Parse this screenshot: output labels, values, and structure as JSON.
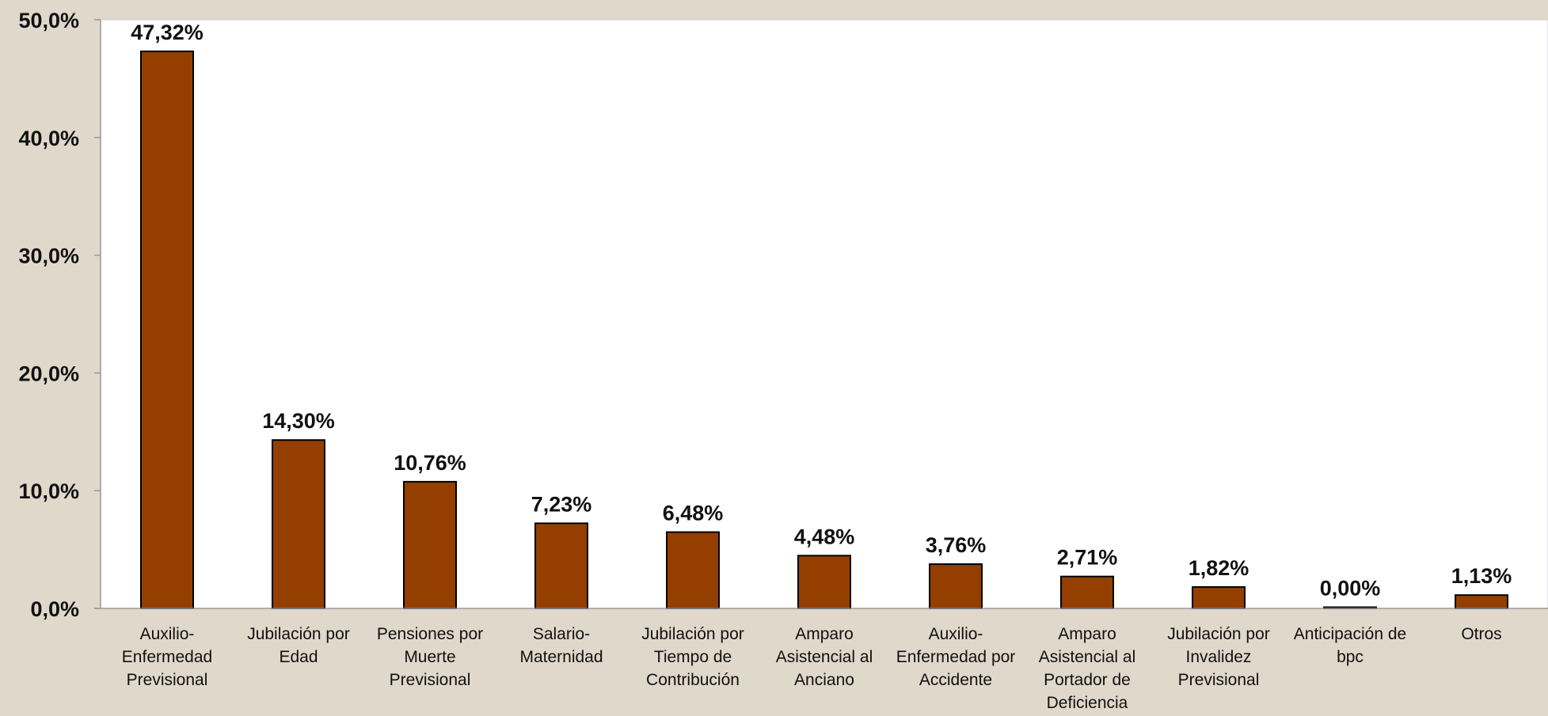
{
  "chart_data": {
    "type": "bar",
    "categories": [
      "Auxilio-Enfermedad Previsional",
      "Jubilación por Edad",
      "Pensiones por Muerte Previsional",
      "Salario-Maternidad",
      "Jubilación por Tiempo de Contribución",
      "Amparo Asistencial al Anciano",
      "Auxilio-Enfermedad por Accidente",
      "Amparo Asistencial al Portador de Deficiencia",
      "Jubilación por Invalidez Previsional",
      "Anticipación de bpc",
      "Otros"
    ],
    "category_lines": [
      [
        "Auxilio-",
        "Enfermedad",
        "Previsional"
      ],
      [
        "Jubilación por",
        "Edad"
      ],
      [
        "Pensiones por",
        "Muerte",
        "Previsional"
      ],
      [
        "Salario-",
        "Maternidad"
      ],
      [
        "Jubilación por",
        "Tiempo de",
        "Contribución"
      ],
      [
        "Amparo",
        "Asistencial al",
        "Anciano"
      ],
      [
        "Auxilio-",
        "Enfermedad por",
        "Accidente"
      ],
      [
        "Amparo",
        "Asistencial al",
        "Portador de",
        "Deficiencia"
      ],
      [
        "Jubilación por",
        "Invalidez",
        "Previsional"
      ],
      [
        "Anticipación de",
        "bpc"
      ],
      [
        "Otros"
      ]
    ],
    "values": [
      47.32,
      14.3,
      10.76,
      7.23,
      6.48,
      4.48,
      3.76,
      2.71,
      1.82,
      0.0,
      1.13
    ],
    "data_labels": [
      "47,32%",
      "14,30%",
      "10,76%",
      "7,23%",
      "6,48%",
      "4,48%",
      "3,76%",
      "2,71%",
      "1,82%",
      "0,00%",
      "1,13%"
    ],
    "y_ticks": [
      0,
      10,
      20,
      30,
      40,
      50
    ],
    "y_tick_labels": [
      "0,0%",
      "10,0%",
      "20,0%",
      "30,0%",
      "40,0%",
      "50,0%"
    ],
    "ylim": [
      0,
      50
    ],
    "title": "",
    "xlabel": "",
    "ylabel": "",
    "grid": false,
    "legend": "none",
    "colors": {
      "bar_fill": "#943f00",
      "bar_stroke": "#000000",
      "plot_background": "#ffffff",
      "page_background": "#e0d8ca",
      "axis": "#999999"
    }
  }
}
